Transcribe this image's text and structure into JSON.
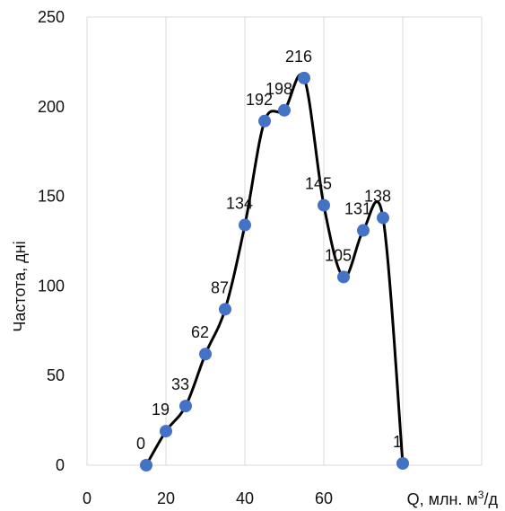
{
  "chart_data": {
    "type": "scatter",
    "title": "",
    "xlabel": "Q, млн. м",
    "xlabel_sup": "3",
    "xlabel_suffix": "/д",
    "ylabel": "Частота, дні",
    "xlim": [
      0,
      100
    ],
    "ylim": [
      0,
      250
    ],
    "x_ticks": [
      "0",
      "20",
      "40",
      "60"
    ],
    "y_ticks": [
      "0",
      "50",
      "100",
      "150",
      "200",
      "250"
    ],
    "grid": "vertical",
    "legend": "none",
    "line_color": "#000000",
    "marker_color": "#4472C4",
    "series": [
      {
        "x": [
          15,
          20,
          25,
          30,
          35,
          40,
          45,
          50,
          55,
          60,
          65,
          70,
          75,
          80
        ],
        "y": [
          0,
          19,
          33,
          62,
          87,
          134,
          192,
          198,
          216,
          145,
          105,
          131,
          138,
          1
        ],
        "labels": [
          "0",
          "19",
          "33",
          "62",
          "87",
          "134",
          "192",
          "198",
          "216",
          "145",
          "105",
          "131",
          "138",
          "1"
        ]
      }
    ]
  }
}
